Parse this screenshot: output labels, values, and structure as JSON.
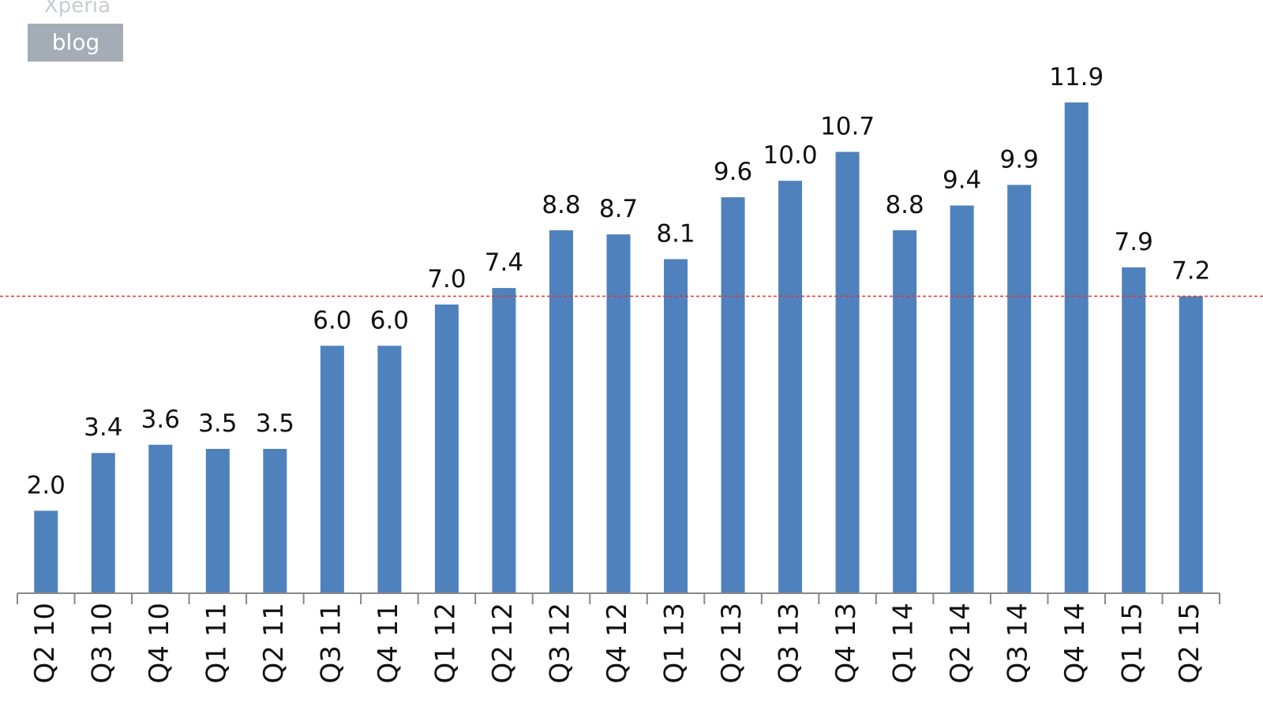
{
  "chart_data": {
    "type": "bar",
    "watermark": [
      "Xperia",
      "blog"
    ],
    "categories": [
      "Q2 10",
      "Q3 10",
      "Q4 10",
      "Q1 11",
      "Q2 11",
      "Q3 11",
      "Q4 11",
      "Q1 12",
      "Q2 12",
      "Q3 12",
      "Q4 12",
      "Q1 13",
      "Q2 13",
      "Q3 13",
      "Q4 13",
      "Q1 14",
      "Q2 14",
      "Q3 14",
      "Q4 14",
      "Q1 15",
      "Q2 15"
    ],
    "values": [
      2.0,
      3.4,
      3.6,
      3.5,
      3.5,
      6.0,
      6.0,
      7.0,
      7.4,
      8.8,
      8.7,
      8.1,
      9.6,
      10.0,
      10.7,
      8.8,
      9.4,
      9.9,
      11.9,
      7.9,
      7.2
    ],
    "value_labels": [
      "2.0",
      "3.4",
      "3.6",
      "3.5",
      "3.5",
      "6.0",
      "6.0",
      "7.0",
      "7.4",
      "8.8",
      "8.7",
      "8.1",
      "9.6",
      "10.0",
      "10.7",
      "8.8",
      "9.4",
      "9.9",
      "11.9",
      "7.9",
      "7.2"
    ],
    "color": "#4f81bd",
    "reference_line": {
      "value": 7.2,
      "color": "#e8302a"
    },
    "ylim": [
      0,
      14
    ]
  }
}
